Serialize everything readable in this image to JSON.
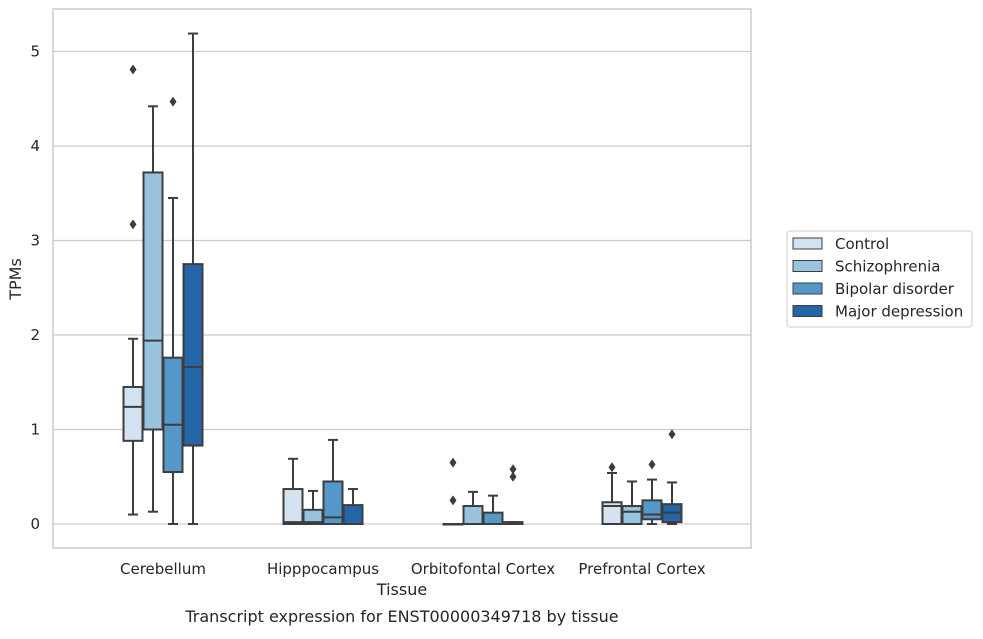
{
  "chart_data": {
    "type": "box",
    "xlabel": "Tissue",
    "ylabel": "TPMs",
    "caption": "Transcript expression for ENST00000349718 by tissue",
    "ylim": [
      -0.25,
      5.45
    ],
    "yticks": [
      0,
      1,
      2,
      3,
      4,
      5
    ],
    "grid": "horizontal",
    "legend_position": "right",
    "categories": [
      "Cerebellum",
      "Hipppocampus",
      "Orbitofontal Cortex",
      "Prefrontal Cortex"
    ],
    "series": [
      {
        "name": "Control",
        "color": "#d3e3f1",
        "boxes": [
          {
            "whislo": 0.1,
            "q1": 0.88,
            "med": 1.24,
            "q3": 1.45,
            "whishi": 1.96,
            "fliers": [
              3.17,
              4.81
            ]
          },
          {
            "whislo": 0.0,
            "q1": 0.0,
            "med": 0.02,
            "q3": 0.37,
            "whishi": 0.69,
            "fliers": []
          },
          {
            "whislo": 0.0,
            "q1": 0.0,
            "med": 0.0,
            "q3": 0.0,
            "whishi": 0.0,
            "fliers": [
              0.25,
              0.65
            ]
          },
          {
            "whislo": 0.0,
            "q1": 0.0,
            "med": 0.19,
            "q3": 0.23,
            "whishi": 0.54,
            "fliers": [
              0.6
            ]
          }
        ]
      },
      {
        "name": "Schizophrenia",
        "color": "#9ac3de",
        "boxes": [
          {
            "whislo": 0.13,
            "q1": 1.0,
            "med": 1.94,
            "q3": 3.72,
            "whishi": 4.42,
            "fliers": []
          },
          {
            "whislo": 0.0,
            "q1": 0.0,
            "med": 0.02,
            "q3": 0.15,
            "whishi": 0.35,
            "fliers": []
          },
          {
            "whislo": 0.0,
            "q1": 0.0,
            "med": 0.0,
            "q3": 0.19,
            "whishi": 0.34,
            "fliers": []
          },
          {
            "whislo": 0.0,
            "q1": 0.0,
            "med": 0.13,
            "q3": 0.19,
            "whishi": 0.45,
            "fliers": []
          }
        ]
      },
      {
        "name": "Bipolar disorder",
        "color": "#5498c9",
        "boxes": [
          {
            "whislo": 0.0,
            "q1": 0.55,
            "med": 1.05,
            "q3": 1.76,
            "whishi": 3.45,
            "fliers": [
              4.47
            ]
          },
          {
            "whislo": 0.0,
            "q1": 0.0,
            "med": 0.07,
            "q3": 0.45,
            "whishi": 0.89,
            "fliers": []
          },
          {
            "whislo": 0.0,
            "q1": 0.0,
            "med": 0.0,
            "q3": 0.12,
            "whishi": 0.3,
            "fliers": []
          },
          {
            "whislo": 0.0,
            "q1": 0.05,
            "med": 0.1,
            "q3": 0.25,
            "whishi": 0.47,
            "fliers": [
              0.63
            ]
          }
        ]
      },
      {
        "name": "Major depression",
        "color": "#2466a8",
        "boxes": [
          {
            "whislo": 0.0,
            "q1": 0.83,
            "med": 1.66,
            "q3": 2.75,
            "whishi": 5.19,
            "fliers": []
          },
          {
            "whislo": 0.0,
            "q1": 0.0,
            "med": 0.0,
            "q3": 0.2,
            "whishi": 0.37,
            "fliers": []
          },
          {
            "whislo": 0.0,
            "q1": 0.0,
            "med": 0.0,
            "q3": 0.02,
            "whishi": 0.02,
            "fliers": [
              0.5,
              0.58
            ]
          },
          {
            "whislo": 0.0,
            "q1": 0.02,
            "med": 0.12,
            "q3": 0.21,
            "whishi": 0.44,
            "fliers": [
              0.95
            ]
          }
        ]
      }
    ]
  }
}
